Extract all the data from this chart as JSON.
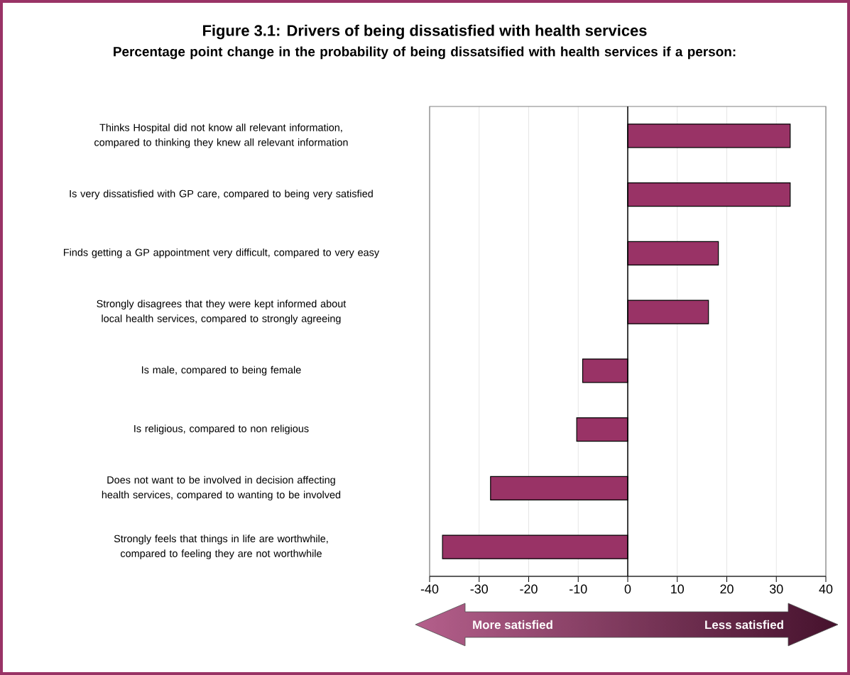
{
  "chart_data": {
    "type": "bar",
    "orientation": "horizontal",
    "title": "Figure 3.1: Drivers of being dissatisfied with health services",
    "subtitle": "Percentage point change in the probability of being dissatsified with health services if a person:",
    "categories": [
      "Thinks Hospital did not know all relevant information, compared to thinking they knew all relevant information",
      "Is very dissatisfied with GP care, compared to being very satisfied",
      "Finds getting a GP appointment very difficult, compared to very easy",
      "Strongly disagrees that they were kept informed about local health services, compared to strongly agreeing",
      "Is male, compared to being female",
      "Is religious, compared to non religious",
      "Does not want to be involved in decision affecting health services, compared to wanting to be involved",
      "Strongly feels that things in life are worthwhile, compared to feeling they are not worthwhile"
    ],
    "values": [
      32.8,
      32.8,
      18.3,
      16.3,
      -9.1,
      -10.3,
      -27.7,
      -37.4
    ],
    "color": "#993366",
    "xlim": [
      -40,
      40
    ],
    "xticks": [
      -40,
      -30,
      -20,
      -10,
      0,
      10,
      20,
      30,
      40
    ],
    "grid": "x",
    "ref_lines": [
      {
        "axis": "x",
        "value": 0,
        "color": "#000000"
      }
    ],
    "annotations": [
      "More satisfied",
      "Less satisfied"
    ]
  }
}
